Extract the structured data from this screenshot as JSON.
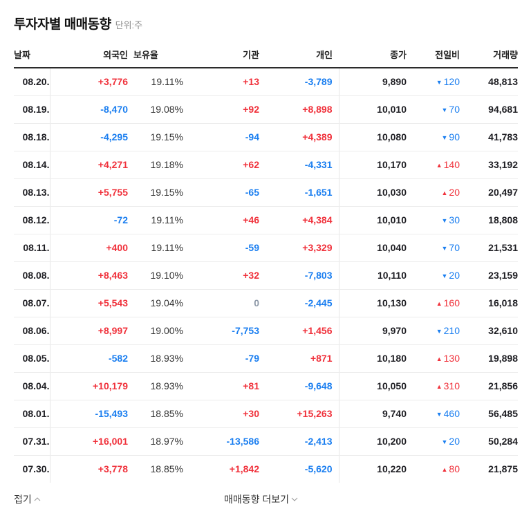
{
  "header": {
    "title": "투자자별 매매동향",
    "unit": "단위:주"
  },
  "colors": {
    "up": "#f0313b",
    "down": "#1a7ef0",
    "neutral": "#8e99a8",
    "text": "#1e1e23"
  },
  "table": {
    "columns": {
      "date": "날짜",
      "foreign": "외국인",
      "holding": "보유율",
      "institution": "기관",
      "individual": "개인",
      "close": "종가",
      "change": "전일비",
      "volume": "거래량"
    },
    "rows": [
      {
        "date": "08.20.",
        "foreign": "+3,776",
        "foreign_dir": "up",
        "holding": "19.11%",
        "institution": "+13",
        "institution_dir": "up",
        "individual": "-3,789",
        "individual_dir": "down",
        "close": "9,890",
        "change": "120",
        "change_dir": "down",
        "volume": "48,813"
      },
      {
        "date": "08.19.",
        "foreign": "-8,470",
        "foreign_dir": "down",
        "holding": "19.08%",
        "institution": "+92",
        "institution_dir": "up",
        "individual": "+8,898",
        "individual_dir": "up",
        "close": "10,010",
        "change": "70",
        "change_dir": "down",
        "volume": "94,681"
      },
      {
        "date": "08.18.",
        "foreign": "-4,295",
        "foreign_dir": "down",
        "holding": "19.15%",
        "institution": "-94",
        "institution_dir": "down",
        "individual": "+4,389",
        "individual_dir": "up",
        "close": "10,080",
        "change": "90",
        "change_dir": "down",
        "volume": "41,783"
      },
      {
        "date": "08.14.",
        "foreign": "+4,271",
        "foreign_dir": "up",
        "holding": "19.18%",
        "institution": "+62",
        "institution_dir": "up",
        "individual": "-4,331",
        "individual_dir": "down",
        "close": "10,170",
        "change": "140",
        "change_dir": "up",
        "volume": "33,192"
      },
      {
        "date": "08.13.",
        "foreign": "+5,755",
        "foreign_dir": "up",
        "holding": "19.15%",
        "institution": "-65",
        "institution_dir": "down",
        "individual": "-1,651",
        "individual_dir": "down",
        "close": "10,030",
        "change": "20",
        "change_dir": "up",
        "volume": "20,497"
      },
      {
        "date": "08.12.",
        "foreign": "-72",
        "foreign_dir": "down",
        "holding": "19.11%",
        "institution": "+46",
        "institution_dir": "up",
        "individual": "+4,384",
        "individual_dir": "up",
        "close": "10,010",
        "change": "30",
        "change_dir": "down",
        "volume": "18,808"
      },
      {
        "date": "08.11.",
        "foreign": "+400",
        "foreign_dir": "up",
        "holding": "19.11%",
        "institution": "-59",
        "institution_dir": "down",
        "individual": "+3,329",
        "individual_dir": "up",
        "close": "10,040",
        "change": "70",
        "change_dir": "down",
        "volume": "21,531"
      },
      {
        "date": "08.08.",
        "foreign": "+8,463",
        "foreign_dir": "up",
        "holding": "19.10%",
        "institution": "+32",
        "institution_dir": "up",
        "individual": "-7,803",
        "individual_dir": "down",
        "close": "10,110",
        "change": "20",
        "change_dir": "down",
        "volume": "23,159"
      },
      {
        "date": "08.07.",
        "foreign": "+5,543",
        "foreign_dir": "up",
        "holding": "19.04%",
        "institution": "0",
        "institution_dir": "zero",
        "individual": "-2,445",
        "individual_dir": "down",
        "close": "10,130",
        "change": "160",
        "change_dir": "up",
        "volume": "16,018"
      },
      {
        "date": "08.06.",
        "foreign": "+8,997",
        "foreign_dir": "up",
        "holding": "19.00%",
        "institution": "-7,753",
        "institution_dir": "down",
        "individual": "+1,456",
        "individual_dir": "up",
        "close": "9,970",
        "change": "210",
        "change_dir": "down",
        "volume": "32,610"
      },
      {
        "date": "08.05.",
        "foreign": "-582",
        "foreign_dir": "down",
        "holding": "18.93%",
        "institution": "-79",
        "institution_dir": "down",
        "individual": "+871",
        "individual_dir": "up",
        "close": "10,180",
        "change": "130",
        "change_dir": "up",
        "volume": "19,898"
      },
      {
        "date": "08.04.",
        "foreign": "+10,179",
        "foreign_dir": "up",
        "holding": "18.93%",
        "institution": "+81",
        "institution_dir": "up",
        "individual": "-9,648",
        "individual_dir": "down",
        "close": "10,050",
        "change": "310",
        "change_dir": "up",
        "volume": "21,856"
      },
      {
        "date": "08.01.",
        "foreign": "-15,493",
        "foreign_dir": "down",
        "holding": "18.85%",
        "institution": "+30",
        "institution_dir": "up",
        "individual": "+15,263",
        "individual_dir": "up",
        "close": "9,740",
        "change": "460",
        "change_dir": "down",
        "volume": "56,485"
      },
      {
        "date": "07.31.",
        "foreign": "+16,001",
        "foreign_dir": "up",
        "holding": "18.97%",
        "institution": "-13,586",
        "institution_dir": "down",
        "individual": "-2,413",
        "individual_dir": "down",
        "close": "10,200",
        "change": "20",
        "change_dir": "down",
        "volume": "50,284"
      },
      {
        "date": "07.30.",
        "foreign": "+3,778",
        "foreign_dir": "up",
        "holding": "18.85%",
        "institution": "+1,842",
        "institution_dir": "up",
        "individual": "-5,620",
        "individual_dir": "down",
        "close": "10,220",
        "change": "80",
        "change_dir": "up",
        "volume": "21,875"
      }
    ]
  },
  "footer": {
    "fold_label": "접기",
    "fold_icon": "chevron-up-icon",
    "more_label": "매매동향 더보기",
    "more_icon": "chevron-down-icon"
  }
}
